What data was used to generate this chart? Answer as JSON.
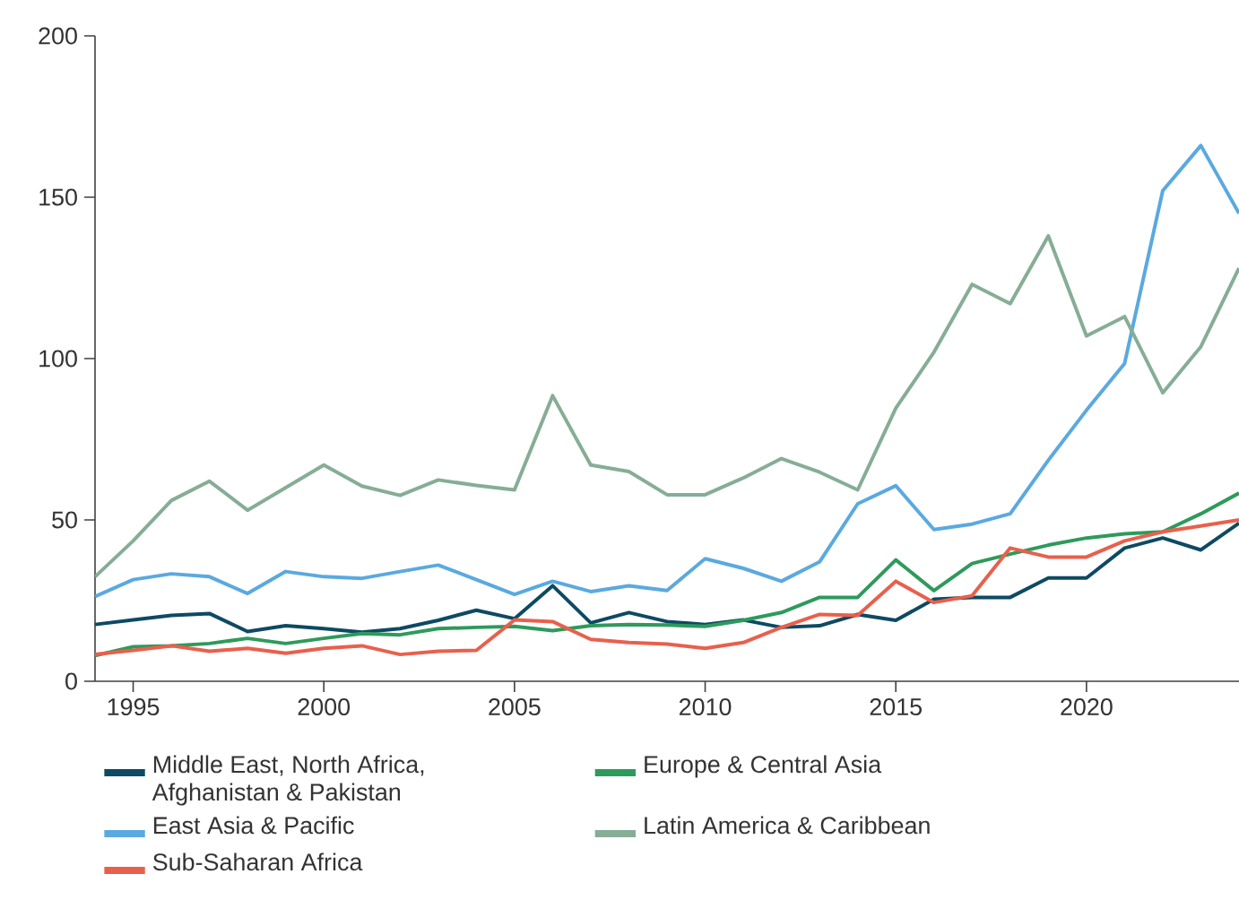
{
  "chart_data": {
    "type": "line",
    "x": [
      1994,
      1995,
      1996,
      1997,
      1998,
      1999,
      2000,
      2001,
      2002,
      2003,
      2004,
      2005,
      2006,
      2007,
      2008,
      2009,
      2010,
      2011,
      2012,
      2013,
      2014,
      2015,
      2016,
      2017,
      2018,
      2019,
      2020,
      2021,
      2022,
      2023,
      2024
    ],
    "xlim": [
      1994,
      2024
    ],
    "xticks": [
      1995,
      2000,
      2005,
      2010,
      2015,
      2020
    ],
    "ylim": [
      0,
      200
    ],
    "yticks": [
      0,
      50,
      100,
      150,
      200
    ],
    "legend": "bottom",
    "line_style": "solid",
    "marker": "none",
    "series": [
      {
        "name": "Middle East, North Africa, Afghanistan & Pakistan",
        "color": "#0d4a63",
        "values": [
          17.6,
          19,
          20.4,
          21,
          15.4,
          17.2,
          16.3,
          15.2,
          16.3,
          18.9,
          22,
          19.4,
          29.6,
          18.1,
          21.3,
          18.5,
          17.6,
          19,
          16.7,
          17.2,
          20.7,
          18.9,
          25.4,
          26,
          26,
          32,
          32,
          41.3,
          44.4,
          40.7,
          49
        ]
      },
      {
        "name": "Europe & Central Asia",
        "color": "#2e9a5b",
        "values": [
          8,
          10.7,
          11,
          11.7,
          13.3,
          11.7,
          13.3,
          14.8,
          14.4,
          16.3,
          16.7,
          17,
          15.7,
          17.2,
          17.6,
          17.4,
          17,
          18.9,
          21.3,
          26,
          26,
          37.6,
          28.1,
          36.5,
          39.4,
          42.2,
          44.4,
          45.7,
          46.3,
          51.9,
          58.3
        ]
      },
      {
        "name": "East Asia & Pacific",
        "color": "#5aa9e0",
        "values": [
          26.3,
          31.5,
          33.3,
          32.4,
          27.2,
          34,
          32.4,
          31.9,
          34,
          36,
          31.5,
          26.9,
          31,
          27.8,
          29.6,
          28.1,
          38,
          35,
          31,
          37,
          55,
          60.6,
          47,
          48.7,
          51.9,
          68.5,
          84,
          98.5,
          152,
          166,
          145
        ]
      },
      {
        "name": "Latin America & Caribbean",
        "color": "#86ad95",
        "values": [
          32.4,
          43.5,
          56,
          62,
          53,
          60,
          67,
          60.5,
          57.6,
          62.4,
          60.7,
          59.3,
          88.5,
          67,
          65,
          57.8,
          57.8,
          63,
          69,
          64.8,
          59.3,
          84.6,
          102,
          123,
          117,
          138,
          107,
          113,
          89.4,
          103.7,
          128
        ]
      },
      {
        "name": "Sub-Saharan Africa",
        "color": "#e8604c",
        "values": [
          8.3,
          9.6,
          11,
          9.3,
          10.2,
          8.7,
          10.2,
          11,
          8.3,
          9.3,
          9.6,
          19,
          18.5,
          13,
          12,
          11.5,
          10.2,
          12,
          16.7,
          20.7,
          20.4,
          31,
          24.4,
          26.5,
          41.3,
          38.5,
          38.5,
          43.5,
          46.3,
          48.1,
          50
        ]
      }
    ]
  }
}
